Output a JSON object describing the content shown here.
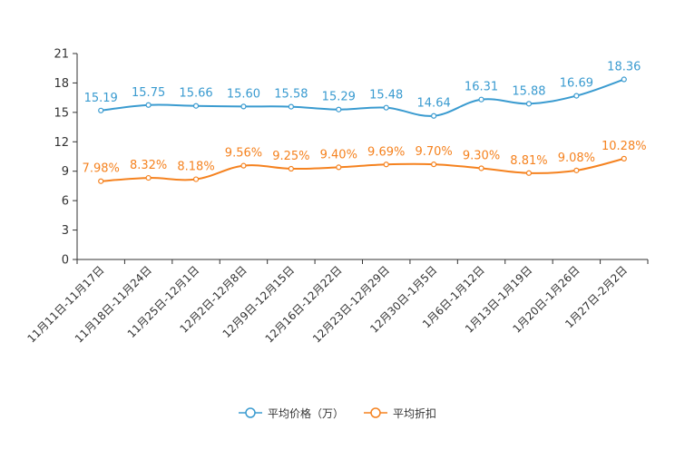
{
  "chart_data": {
    "type": "line",
    "title": "",
    "xlabel": "",
    "ylabel": "",
    "ylim": [
      0,
      21
    ],
    "yticks": [
      0,
      3,
      6,
      9,
      12,
      15,
      18,
      21
    ],
    "grid": false,
    "legend_position": "bottom-center",
    "categories": [
      "11月11日-11月17日",
      "11月18日-11月24日",
      "11月25日-12月1日",
      "12月2日-12月8日",
      "12月9日-12月15日",
      "12月16日-12月22日",
      "12月23日-12月29日",
      "12月30日-1月5日",
      "1月6日-1月12日",
      "1月13日-1月19日",
      "1月20日-1月26日",
      "1月27日-2月2日"
    ],
    "series": [
      {
        "name": "平均价格（万）",
        "color": "#3a9bd0",
        "values": [
          15.19,
          15.75,
          15.66,
          15.6,
          15.58,
          15.29,
          15.48,
          14.64,
          16.31,
          15.88,
          16.69,
          18.36
        ],
        "labels": [
          "15.19",
          "15.75",
          "15.66",
          "15.60",
          "15.58",
          "15.29",
          "15.48",
          "14.64",
          "16.31",
          "15.88",
          "16.69",
          "18.36"
        ]
      },
      {
        "name": "平均折扣",
        "color": "#f5821f",
        "values": [
          7.98,
          8.32,
          8.18,
          9.56,
          9.25,
          9.4,
          9.69,
          9.7,
          9.3,
          8.81,
          9.08,
          10.28
        ],
        "labels": [
          "7.98%",
          "8.32%",
          "8.18%",
          "9.56%",
          "9.25%",
          "9.40%",
          "9.69%",
          "9.70%",
          "9.30%",
          "8.81%",
          "9.08%",
          "10.28%"
        ]
      }
    ]
  }
}
